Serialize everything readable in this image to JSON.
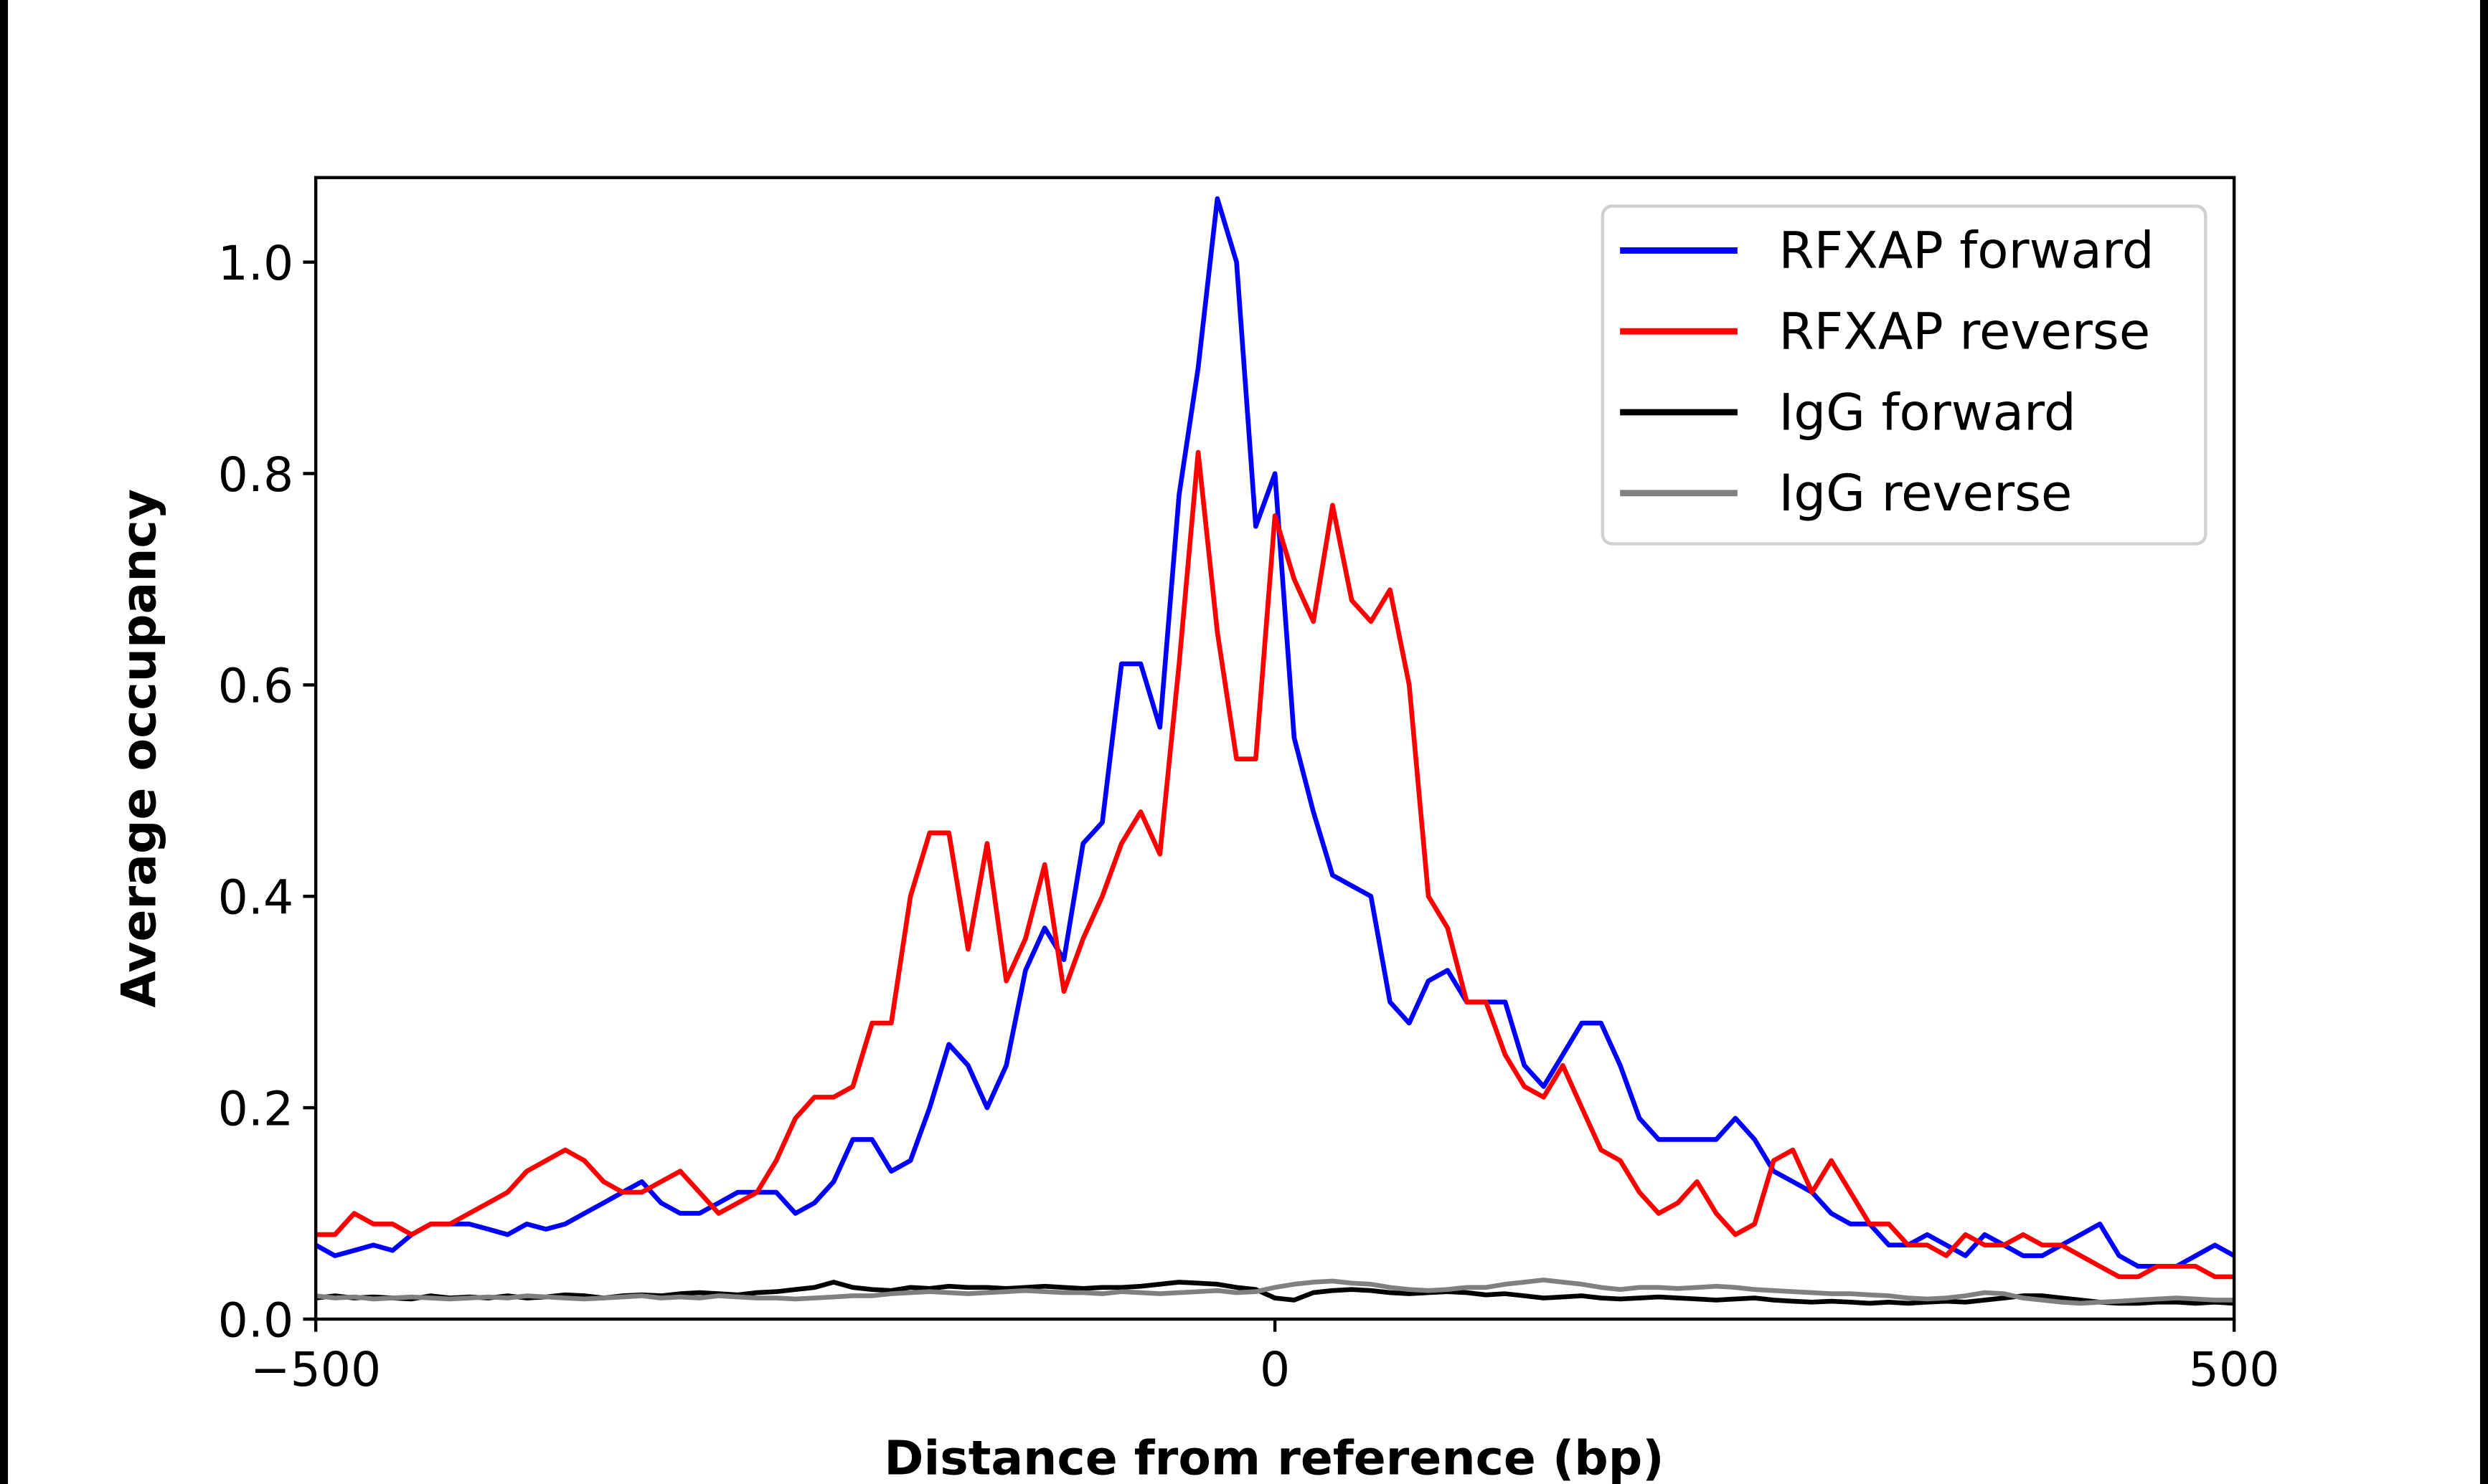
{
  "chart_data": {
    "type": "line",
    "title": "",
    "xlabel": "Distance from reference (bp)",
    "ylabel": "Average occupancy",
    "xlim": [
      -500,
      500
    ],
    "ylim": [
      0,
      1.08
    ],
    "xticks": [
      -500,
      0,
      500
    ],
    "xtick_labels": [
      "−500",
      "0",
      "500"
    ],
    "yticks": [
      0,
      0.2,
      0.4,
      0.6,
      0.8,
      1.0
    ],
    "ytick_labels": [
      "0.0",
      "0.2",
      "0.4",
      "0.6",
      "0.8",
      "1.0"
    ],
    "grid": false,
    "legend_position": "top-right",
    "x_start": -500,
    "x_step": 10,
    "series": [
      {
        "name": "RFXAP forward",
        "color": "#0000ff",
        "values": [
          0.07,
          0.06,
          0.065,
          0.07,
          0.065,
          0.08,
          0.09,
          0.09,
          0.09,
          0.085,
          0.08,
          0.09,
          0.085,
          0.09,
          0.1,
          0.11,
          0.12,
          0.13,
          0.11,
          0.1,
          0.1,
          0.11,
          0.12,
          0.12,
          0.12,
          0.1,
          0.11,
          0.13,
          0.17,
          0.17,
          0.14,
          0.15,
          0.2,
          0.26,
          0.24,
          0.2,
          0.24,
          0.33,
          0.37,
          0.34,
          0.45,
          0.47,
          0.62,
          0.62,
          0.56,
          0.78,
          0.9,
          1.06,
          1.0,
          0.75,
          0.8,
          0.55,
          0.48,
          0.42,
          0.41,
          0.4,
          0.3,
          0.28,
          0.32,
          0.33,
          0.3,
          0.3,
          0.3,
          0.24,
          0.22,
          0.25,
          0.28,
          0.28,
          0.24,
          0.19,
          0.17,
          0.17,
          0.17,
          0.17,
          0.19,
          0.17,
          0.14,
          0.13,
          0.12,
          0.1,
          0.09,
          0.09,
          0.07,
          0.07,
          0.08,
          0.07,
          0.06,
          0.08,
          0.07,
          0.06,
          0.06,
          0.07,
          0.08,
          0.09,
          0.06,
          0.05,
          0.05,
          0.05,
          0.06,
          0.07,
          0.06
        ]
      },
      {
        "name": "RFXAP reverse",
        "color": "#ff0000",
        "values": [
          0.08,
          0.08,
          0.1,
          0.09,
          0.09,
          0.08,
          0.09,
          0.09,
          0.1,
          0.11,
          0.12,
          0.14,
          0.15,
          0.16,
          0.15,
          0.13,
          0.12,
          0.12,
          0.13,
          0.14,
          0.12,
          0.1,
          0.11,
          0.12,
          0.15,
          0.19,
          0.21,
          0.21,
          0.22,
          0.28,
          0.28,
          0.4,
          0.46,
          0.46,
          0.35,
          0.45,
          0.32,
          0.36,
          0.43,
          0.31,
          0.36,
          0.4,
          0.45,
          0.48,
          0.44,
          0.62,
          0.82,
          0.65,
          0.53,
          0.53,
          0.76,
          0.7,
          0.66,
          0.77,
          0.68,
          0.66,
          0.69,
          0.6,
          0.4,
          0.37,
          0.3,
          0.3,
          0.25,
          0.22,
          0.21,
          0.24,
          0.2,
          0.16,
          0.15,
          0.12,
          0.1,
          0.11,
          0.13,
          0.1,
          0.08,
          0.09,
          0.15,
          0.16,
          0.12,
          0.15,
          0.12,
          0.09,
          0.09,
          0.07,
          0.07,
          0.06,
          0.08,
          0.07,
          0.07,
          0.08,
          0.07,
          0.07,
          0.06,
          0.05,
          0.04,
          0.04,
          0.05,
          0.05,
          0.05,
          0.04,
          0.04
        ]
      },
      {
        "name": "IgG forward",
        "color": "#000000",
        "values": [
          0.02,
          0.022,
          0.02,
          0.021,
          0.02,
          0.019,
          0.022,
          0.02,
          0.021,
          0.02,
          0.022,
          0.02,
          0.021,
          0.023,
          0.022,
          0.02,
          0.022,
          0.023,
          0.022,
          0.024,
          0.025,
          0.024,
          0.023,
          0.025,
          0.026,
          0.028,
          0.03,
          0.035,
          0.03,
          0.028,
          0.027,
          0.03,
          0.029,
          0.031,
          0.03,
          0.03,
          0.029,
          0.03,
          0.031,
          0.03,
          0.029,
          0.03,
          0.03,
          0.031,
          0.033,
          0.035,
          0.034,
          0.033,
          0.03,
          0.028,
          0.02,
          0.018,
          0.025,
          0.027,
          0.028,
          0.027,
          0.025,
          0.024,
          0.025,
          0.026,
          0.025,
          0.023,
          0.024,
          0.022,
          0.02,
          0.021,
          0.022,
          0.02,
          0.019,
          0.02,
          0.021,
          0.02,
          0.019,
          0.018,
          0.019,
          0.02,
          0.018,
          0.017,
          0.016,
          0.017,
          0.016,
          0.015,
          0.016,
          0.015,
          0.016,
          0.017,
          0.016,
          0.018,
          0.02,
          0.022,
          0.022,
          0.02,
          0.018,
          0.016,
          0.015,
          0.015,
          0.016,
          0.016,
          0.015,
          0.016,
          0.015
        ]
      },
      {
        "name": "IgG reverse",
        "color": "#808080",
        "values": [
          0.022,
          0.02,
          0.021,
          0.019,
          0.02,
          0.021,
          0.02,
          0.019,
          0.02,
          0.021,
          0.02,
          0.022,
          0.021,
          0.02,
          0.019,
          0.02,
          0.021,
          0.022,
          0.02,
          0.021,
          0.02,
          0.022,
          0.021,
          0.02,
          0.02,
          0.019,
          0.02,
          0.021,
          0.022,
          0.022,
          0.024,
          0.025,
          0.026,
          0.025,
          0.024,
          0.025,
          0.026,
          0.027,
          0.026,
          0.025,
          0.025,
          0.024,
          0.026,
          0.025,
          0.024,
          0.025,
          0.026,
          0.027,
          0.025,
          0.026,
          0.03,
          0.033,
          0.035,
          0.036,
          0.034,
          0.033,
          0.03,
          0.028,
          0.027,
          0.028,
          0.03,
          0.03,
          0.033,
          0.035,
          0.037,
          0.035,
          0.033,
          0.03,
          0.028,
          0.03,
          0.03,
          0.029,
          0.03,
          0.031,
          0.03,
          0.028,
          0.027,
          0.026,
          0.025,
          0.024,
          0.024,
          0.023,
          0.022,
          0.02,
          0.019,
          0.02,
          0.022,
          0.025,
          0.024,
          0.02,
          0.018,
          0.016,
          0.015,
          0.016,
          0.017,
          0.018,
          0.019,
          0.02,
          0.019,
          0.018,
          0.018
        ]
      }
    ]
  }
}
